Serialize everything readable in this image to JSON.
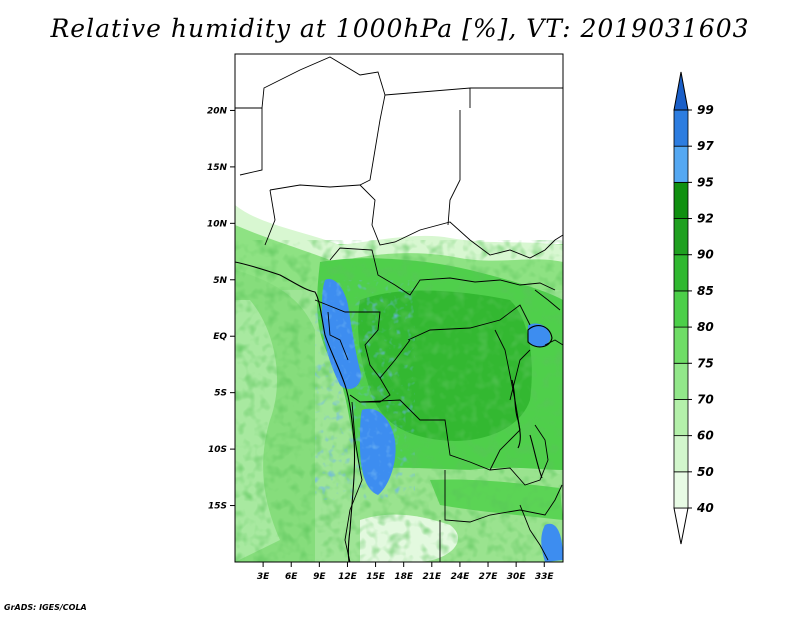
{
  "title": "Relative humidity at 1000hPa [%], VT: 2019031603",
  "credit": "GrADS: IGES/COLA",
  "map": {
    "lon_range": [
      0,
      35
    ],
    "lat_range": [
      -20,
      25
    ],
    "lon_ticks": [
      "3E",
      "6E",
      "9E",
      "12E",
      "15E",
      "18E",
      "21E",
      "24E",
      "27E",
      "30E",
      "33E"
    ],
    "lat_ticks": [
      "20N",
      "15N",
      "10N",
      "5N",
      "EQ",
      "5S",
      "10S",
      "15S"
    ]
  },
  "colorbar": {
    "levels": [
      "40",
      "50",
      "60",
      "70",
      "75",
      "80",
      "85",
      "90",
      "92",
      "95",
      "97",
      "99"
    ],
    "colors": [
      "#ffffff",
      "#e8fbe5",
      "#d2f6cc",
      "#b4f0aa",
      "#92e78a",
      "#6fdd66",
      "#4ccf49",
      "#30b830",
      "#1fa020",
      "#109010",
      "#55a8f2",
      "#2d7de0",
      "#1a5fc8"
    ]
  }
}
